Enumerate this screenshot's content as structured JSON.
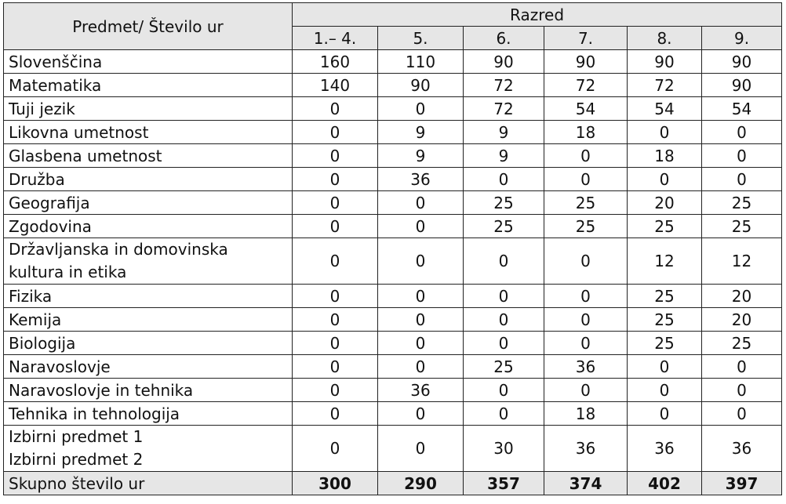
{
  "table": {
    "corner_label": "Predmet/ Število ur",
    "group_label": "Razred",
    "columns": [
      "1.– 4.",
      "5.",
      "6.",
      "7.",
      "8.",
      "9."
    ],
    "rows": [
      {
        "subject": [
          "Slovenščina"
        ],
        "values": [
          "160",
          "110",
          "90",
          "90",
          "90",
          "90"
        ]
      },
      {
        "subject": [
          "Matematika"
        ],
        "values": [
          "140",
          "90",
          "72",
          "72",
          "72",
          "90"
        ]
      },
      {
        "subject": [
          "Tuji jezik"
        ],
        "values": [
          "0",
          "0",
          "72",
          "54",
          "54",
          "54"
        ]
      },
      {
        "subject": [
          "Likovna umetnost"
        ],
        "values": [
          "0",
          "9",
          "9",
          "18",
          "0",
          "0"
        ]
      },
      {
        "subject": [
          "Glasbena umetnost"
        ],
        "values": [
          "0",
          "9",
          "9",
          "0",
          "18",
          "0"
        ]
      },
      {
        "subject": [
          "Družba"
        ],
        "values": [
          "0",
          "36",
          "0",
          "0",
          "0",
          "0"
        ]
      },
      {
        "subject": [
          "Geografija"
        ],
        "values": [
          "0",
          "0",
          "25",
          "25",
          "20",
          "25"
        ]
      },
      {
        "subject": [
          "Zgodovina"
        ],
        "values": [
          "0",
          "0",
          "25",
          "25",
          "25",
          "25"
        ]
      },
      {
        "subject": [
          "Državljanska in domovinska",
          "kultura in etika"
        ],
        "values": [
          "0",
          "0",
          "0",
          "0",
          "12",
          "12"
        ]
      },
      {
        "subject": [
          "Fizika"
        ],
        "values": [
          "0",
          "0",
          "0",
          "0",
          "25",
          "20"
        ]
      },
      {
        "subject": [
          "Kemija"
        ],
        "values": [
          "0",
          "0",
          "0",
          "0",
          "25",
          "20"
        ]
      },
      {
        "subject": [
          "Biologija"
        ],
        "values": [
          "0",
          "0",
          "0",
          "0",
          "25",
          "25"
        ]
      },
      {
        "subject": [
          "Naravoslovje"
        ],
        "values": [
          "0",
          "0",
          "25",
          "36",
          "0",
          "0"
        ]
      },
      {
        "subject": [
          "Naravoslovje in tehnika"
        ],
        "values": [
          "0",
          "36",
          "0",
          "0",
          "0",
          "0"
        ]
      },
      {
        "subject": [
          "Tehnika in tehnologija"
        ],
        "values": [
          "0",
          "0",
          "0",
          "18",
          "0",
          "0"
        ]
      },
      {
        "subject": [
          "Izbirni predmet 1",
          "Izbirni predmet 2"
        ],
        "values": [
          "0",
          "0",
          "30",
          "36",
          "36",
          "36"
        ]
      }
    ],
    "total": {
      "label": "Skupno število ur",
      "values": [
        "300",
        "290",
        "357",
        "374",
        "402",
        "397"
      ]
    }
  }
}
